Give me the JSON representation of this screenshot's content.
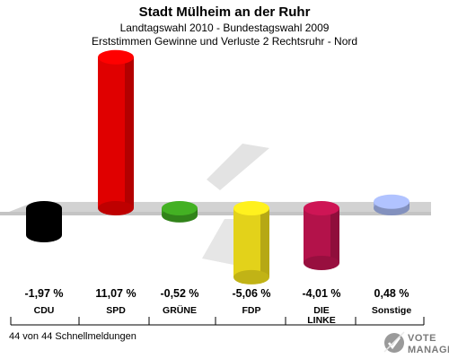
{
  "chart_data": {
    "type": "bar",
    "title": "Stadt Mülheim an der Ruhr",
    "subtitle_lines": [
      "Landtagswahl 2010 - Bundestagswahl 2009",
      "Erststimmen Gewinne und Verluste 2 Rechtsruhr - Nord"
    ],
    "categories": [
      "CDU",
      "SPD",
      "GRÜNE",
      "FDP",
      "DIE LINKE",
      "Sonstige"
    ],
    "category_lines": [
      [
        "CDU"
      ],
      [
        "SPD"
      ],
      [
        "GRÜNE"
      ],
      [
        "FDP"
      ],
      [
        "DIE",
        "LINKE"
      ],
      [
        "Sonstige"
      ]
    ],
    "values": [
      -1.97,
      11.07,
      -0.52,
      -5.06,
      -4.01,
      0.48
    ],
    "value_labels": [
      "-1,97 %",
      "11,07 %",
      "-0,52 %",
      "-5,06 %",
      "-4,01 %",
      "0,48 %"
    ],
    "colors": [
      "#000000",
      "#e00000",
      "#3a9a1e",
      "#e3d21a",
      "#b3124a",
      "#9aaae0"
    ],
    "unit": "%"
  },
  "footer": {
    "reporting_status": "44 von 44 Schnellmeldungen"
  },
  "brand": {
    "logo_text_line1": "VOTE",
    "logo_text_line2": "MANAGER"
  }
}
